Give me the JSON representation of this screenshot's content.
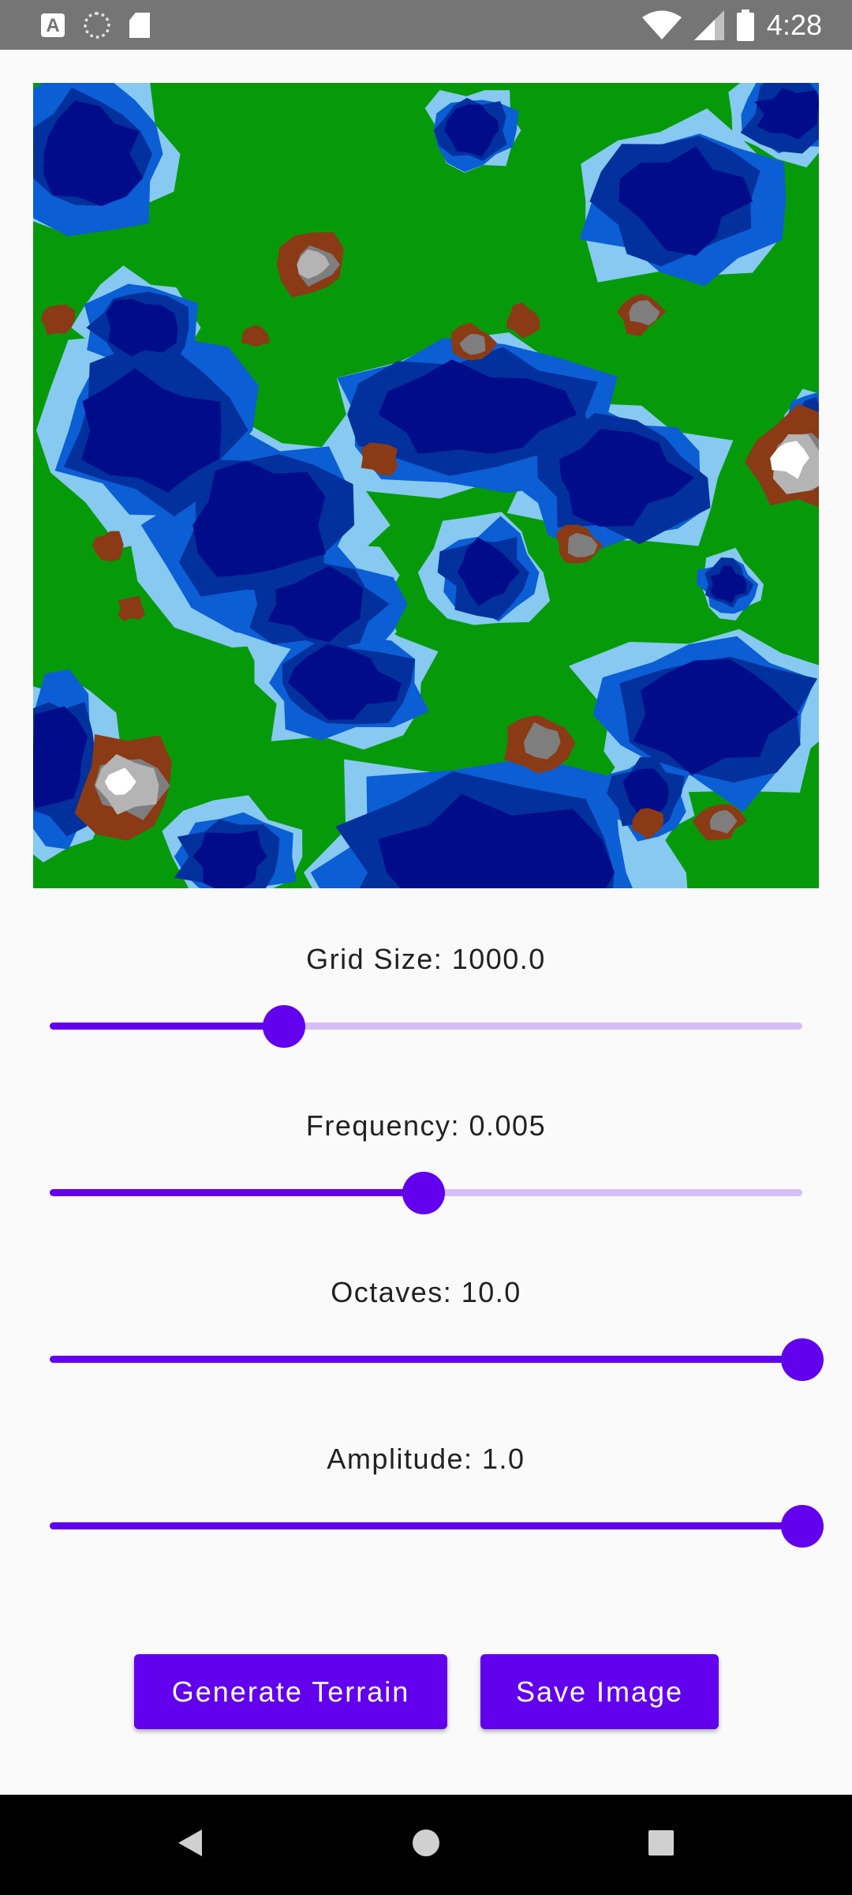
{
  "status_bar": {
    "time": "4:28",
    "icons": [
      "text-a-icon",
      "spinner-icon",
      "sd-card-icon",
      "wifi-icon",
      "signal-icon",
      "battery-icon"
    ]
  },
  "terrain": {
    "colors": {
      "deep_water": "#000c8a",
      "water": "#02309c",
      "shallow": "#0b5ed4",
      "shore": "#87c9f0",
      "sand": "#d6c88a",
      "grass": "#069a0a",
      "hill": "#8a3a14",
      "rock": "#7e7e7e",
      "stone": "#b4b4b4",
      "snow": "#ffffff"
    }
  },
  "controls": {
    "grid_size": {
      "label": "Grid Size: 1000.0",
      "fraction": 0.311
    },
    "frequency": {
      "label": "Frequency: 0.005",
      "fraction": 0.497
    },
    "octaves": {
      "label": "Octaves: 10.0",
      "fraction": 1.0
    },
    "amplitude": {
      "label": "Amplitude: 1.0",
      "fraction": 1.0
    }
  },
  "buttons": {
    "generate": "Generate Terrain",
    "save": "Save Image"
  }
}
